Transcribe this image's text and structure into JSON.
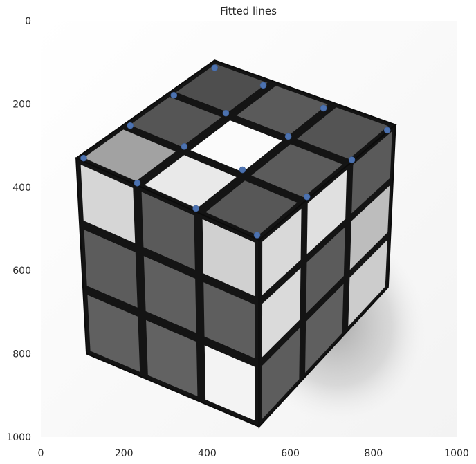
{
  "chart_data": {
    "type": "scatter",
    "title": "Fitted lines",
    "xlabel": "",
    "ylabel": "",
    "xlim": [
      0,
      1000
    ],
    "ylim": [
      1000,
      0
    ],
    "y_inverted": true,
    "grid": false,
    "x_ticks": [
      0,
      200,
      400,
      600,
      800,
      1000
    ],
    "y_ticks": [
      0,
      200,
      400,
      600,
      800,
      1000
    ],
    "background": "photo of a black-and-white Rubik's cube",
    "series": [
      {
        "color": "#4c72b0",
        "points": [
          [
            418,
            113
          ],
          [
            535,
            155
          ],
          [
            680,
            210
          ],
          [
            833,
            263
          ],
          [
            320,
            179
          ],
          [
            445,
            222
          ],
          [
            595,
            278
          ],
          [
            748,
            334
          ],
          [
            215,
            252
          ],
          [
            345,
            302
          ],
          [
            485,
            358
          ],
          [
            640,
            423
          ],
          [
            103,
            330
          ],
          [
            232,
            390
          ],
          [
            373,
            451
          ],
          [
            520,
            515
          ]
        ]
      }
    ]
  }
}
